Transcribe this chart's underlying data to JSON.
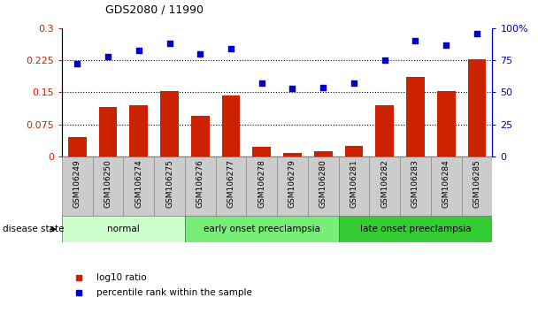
{
  "title": "GDS2080 / 11990",
  "samples": [
    "GSM106249",
    "GSM106250",
    "GSM106274",
    "GSM106275",
    "GSM106276",
    "GSM106277",
    "GSM106278",
    "GSM106279",
    "GSM106280",
    "GSM106281",
    "GSM106282",
    "GSM106283",
    "GSM106284",
    "GSM106285"
  ],
  "log10_ratio": [
    0.045,
    0.115,
    0.12,
    0.152,
    0.095,
    0.143,
    0.022,
    0.008,
    0.013,
    0.025,
    0.12,
    0.185,
    0.152,
    0.228
  ],
  "percentile_rank": [
    72,
    78,
    83,
    88,
    80,
    84,
    57,
    53,
    54,
    57,
    75,
    90,
    87,
    96
  ],
  "groups": [
    {
      "label": "normal",
      "start": 0,
      "end": 4,
      "color": "#ccffcc"
    },
    {
      "label": "early onset preeclampsia",
      "start": 4,
      "end": 9,
      "color": "#77ee77"
    },
    {
      "label": "late onset preeclampsia",
      "start": 9,
      "end": 14,
      "color": "#33cc33"
    }
  ],
  "bar_color": "#cc2200",
  "dot_color": "#0000cc",
  "ylim_left": [
    0,
    0.3
  ],
  "ylim_right": [
    0,
    100
  ],
  "yticks_left": [
    0,
    0.075,
    0.15,
    0.225,
    0.3
  ],
  "ytick_labels_left": [
    "0",
    "0.075",
    "0.15",
    "0.225",
    "0.3"
  ],
  "yticks_right": [
    0,
    25,
    50,
    75,
    100
  ],
  "ytick_labels_right": [
    "0",
    "25",
    "50",
    "75",
    "100%"
  ],
  "hline_values": [
    0.075,
    0.15,
    0.225
  ],
  "disease_state_label": "disease state",
  "legend_items": [
    {
      "label": "log10 ratio",
      "color": "#cc2200"
    },
    {
      "label": "percentile rank within the sample",
      "color": "#0000cc"
    }
  ],
  "cell_bg": "#cccccc",
  "cell_edge": "#888888"
}
